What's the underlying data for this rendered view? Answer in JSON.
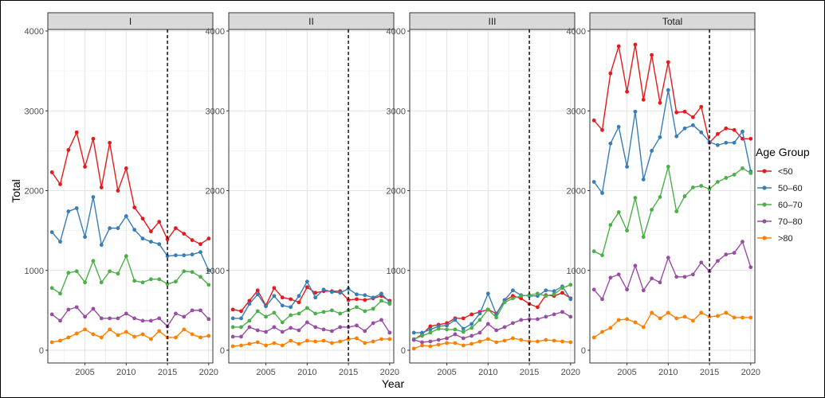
{
  "chart_data": {
    "type": "line",
    "xlabel": "Year",
    "ylabel": "Total",
    "ylim": [
      0,
      4000
    ],
    "xlim": [
      2000.5,
      2020.5
    ],
    "x_ticks": [
      2005,
      2010,
      2015,
      2020
    ],
    "y_ticks": [
      0,
      1000,
      2000,
      3000,
      4000
    ],
    "reference_line_x": 2015,
    "grid": true,
    "legend": {
      "title": "Age Group",
      "position": "right",
      "entries": [
        "<50",
        "50–60",
        "60–70",
        "70–80",
        ">80"
      ]
    },
    "colors": {
      "<50": "#e41a1c",
      "50–60": "#377eb8",
      "60–70": "#4daf4a",
      "70–80": "#984ea3",
      ">80": "#ff7f00"
    },
    "x": [
      2001,
      2002,
      2003,
      2004,
      2005,
      2006,
      2007,
      2008,
      2009,
      2010,
      2011,
      2012,
      2013,
      2014,
      2015,
      2016,
      2017,
      2018,
      2019,
      2020
    ],
    "panels": [
      {
        "title": "I",
        "series": [
          {
            "name": "<50",
            "values": [
              2230,
              2080,
              2510,
              2730,
              2300,
              2650,
              2040,
              2600,
              2000,
              2280,
              1790,
              1650,
              1490,
              1610,
              1390,
              1530,
              1460,
              1380,
              1330,
              1400
            ]
          },
          {
            "name": "50–60",
            "values": [
              1480,
              1360,
              1740,
              1780,
              1420,
              1920,
              1320,
              1530,
              1530,
              1680,
              1510,
              1400,
              1360,
              1330,
              1180,
              1190,
              1190,
              1200,
              1230,
              1000
            ]
          },
          {
            "name": "60–70",
            "values": [
              780,
              710,
              970,
              990,
              850,
              1120,
              850,
              990,
              960,
              1180,
              870,
              850,
              890,
              890,
              830,
              860,
              990,
              980,
              920,
              820
            ]
          },
          {
            "name": "70–80",
            "values": [
              450,
              370,
              510,
              540,
              420,
              520,
              400,
              400,
              400,
              460,
              400,
              370,
              370,
              400,
              300,
              460,
              420,
              500,
              500,
              390
            ]
          },
          {
            "name": ">80",
            "values": [
              100,
              120,
              160,
              210,
              260,
              200,
              160,
              260,
              190,
              230,
              170,
              200,
              140,
              240,
              160,
              160,
              260,
              200,
              160,
              180
            ]
          }
        ]
      },
      {
        "title": "II",
        "series": [
          {
            "name": "<50",
            "values": [
              510,
              490,
              620,
              750,
              560,
              780,
              660,
              640,
              600,
              790,
              720,
              740,
              740,
              740,
              630,
              640,
              630,
              650,
              680,
              620
            ]
          },
          {
            "name": "50–60",
            "values": [
              400,
              400,
              580,
              700,
              550,
              680,
              560,
              540,
              680,
              860,
              660,
              760,
              730,
              720,
              770,
              700,
              690,
              660,
              710,
              600
            ]
          },
          {
            "name": "60–70",
            "values": [
              290,
              290,
              370,
              490,
              420,
              470,
              350,
              440,
              460,
              530,
              460,
              480,
              500,
              460,
              500,
              540,
              490,
              520,
              620,
              580
            ]
          },
          {
            "name": "70–80",
            "values": [
              170,
              170,
              290,
              250,
              230,
              290,
              230,
              280,
              250,
              350,
              290,
              260,
              240,
              290,
              290,
              310,
              240,
              340,
              380,
              220
            ]
          },
          {
            "name": ">80",
            "values": [
              50,
              60,
              80,
              100,
              60,
              90,
              60,
              120,
              80,
              120,
              110,
              120,
              90,
              110,
              140,
              150,
              90,
              110,
              140,
              140
            ]
          }
        ]
      },
      {
        "title": "III",
        "series": [
          {
            "name": "<50",
            "values": [
              130,
              200,
              300,
              320,
              340,
              400,
              400,
              450,
              480,
              510,
              460,
              620,
              680,
              650,
              580,
              540,
              690,
              680,
              720,
              650
            ]
          },
          {
            "name": "50–60",
            "values": [
              220,
              220,
              260,
              300,
              310,
              380,
              270,
              330,
              460,
              710,
              450,
              630,
              750,
              690,
              680,
              680,
              750,
              740,
              800,
              640
            ]
          },
          {
            "name": "60–70",
            "values": [
              140,
              180,
              220,
              270,
              260,
              260,
              230,
              280,
              380,
              510,
              410,
              600,
              650,
              680,
              690,
              710,
              680,
              700,
              780,
              820
            ]
          },
          {
            "name": "70–80",
            "values": [
              130,
              100,
              110,
              130,
              150,
              200,
              150,
              180,
              220,
              330,
              250,
              290,
              340,
              380,
              390,
              390,
              420,
              450,
              480,
              420
            ]
          },
          {
            "name": ">80",
            "values": [
              20,
              60,
              50,
              70,
              90,
              90,
              60,
              80,
              110,
              140,
              100,
              120,
              150,
              130,
              110,
              110,
              130,
              120,
              110,
              100
            ]
          }
        ]
      },
      {
        "title": "Total",
        "series": [
          {
            "name": "<50",
            "values": [
              2880,
              2760,
              3470,
              3810,
              3240,
              3830,
              3140,
              3700,
              3100,
              3610,
              2980,
              2990,
              2920,
              3050,
              2600,
              2710,
              2780,
              2760,
              2650,
              2650
            ]
          },
          {
            "name": "50–60",
            "values": [
              2110,
              1970,
              2590,
              2800,
              2300,
              2990,
              2140,
              2500,
              2670,
              3260,
              2680,
              2780,
              2820,
              2730,
              2610,
              2570,
              2600,
              2600,
              2740,
              2240
            ]
          },
          {
            "name": "60–70",
            "values": [
              1240,
              1190,
              1570,
              1730,
              1500,
              1910,
              1420,
              1760,
              1920,
              2300,
              1740,
              1930,
              2040,
              2060,
              2020,
              2110,
              2160,
              2200,
              2280,
              2220
            ]
          },
          {
            "name": "70–80",
            "values": [
              760,
              640,
              910,
              950,
              760,
              1060,
              750,
              900,
              850,
              1160,
              920,
              920,
              950,
              1100,
              990,
              1120,
              1200,
              1220,
              1360,
              1040
            ]
          },
          {
            "name": ">80",
            "values": [
              160,
              230,
              280,
              380,
              390,
              350,
              290,
              470,
              400,
              470,
              400,
              420,
              370,
              470,
              420,
              430,
              470,
              410,
              410,
              410
            ]
          }
        ]
      }
    ]
  }
}
